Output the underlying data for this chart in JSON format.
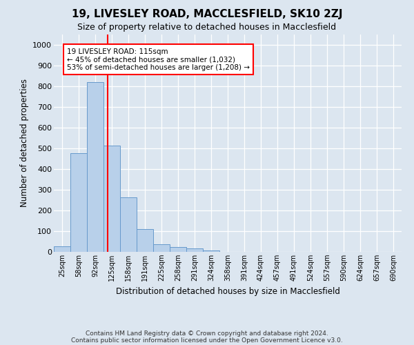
{
  "title": "19, LIVESLEY ROAD, MACCLESFIELD, SK10 2ZJ",
  "subtitle": "Size of property relative to detached houses in Macclesfield",
  "xlabel": "Distribution of detached houses by size in Macclesfield",
  "ylabel": "Number of detached properties",
  "bar_labels": [
    "25sqm",
    "58sqm",
    "92sqm",
    "125sqm",
    "158sqm",
    "191sqm",
    "225sqm",
    "258sqm",
    "291sqm",
    "324sqm",
    "358sqm",
    "391sqm",
    "424sqm",
    "457sqm",
    "491sqm",
    "524sqm",
    "557sqm",
    "590sqm",
    "624sqm",
    "657sqm",
    "690sqm"
  ],
  "bar_values": [
    28,
    478,
    820,
    515,
    265,
    110,
    38,
    22,
    18,
    8,
    0,
    0,
    0,
    0,
    0,
    0,
    0,
    0,
    0,
    0,
    0
  ],
  "bar_color": "#b8d0ea",
  "bar_edgecolor": "#6699cc",
  "vline_index": 2.75,
  "vline_color": "red",
  "annotation_text": "19 LIVESLEY ROAD: 115sqm\n← 45% of detached houses are smaller (1,032)\n53% of semi-detached houses are larger (1,208) →",
  "annotation_box_color": "white",
  "annotation_box_edgecolor": "red",
  "ylim": [
    0,
    1050
  ],
  "yticks": [
    0,
    100,
    200,
    300,
    400,
    500,
    600,
    700,
    800,
    900,
    1000
  ],
  "fig_bg_color": "#dce6f0",
  "plot_bg_color": "#dce6f0",
  "footer_line1": "Contains HM Land Registry data © Crown copyright and database right 2024.",
  "footer_line2": "Contains public sector information licensed under the Open Government Licence v3.0."
}
